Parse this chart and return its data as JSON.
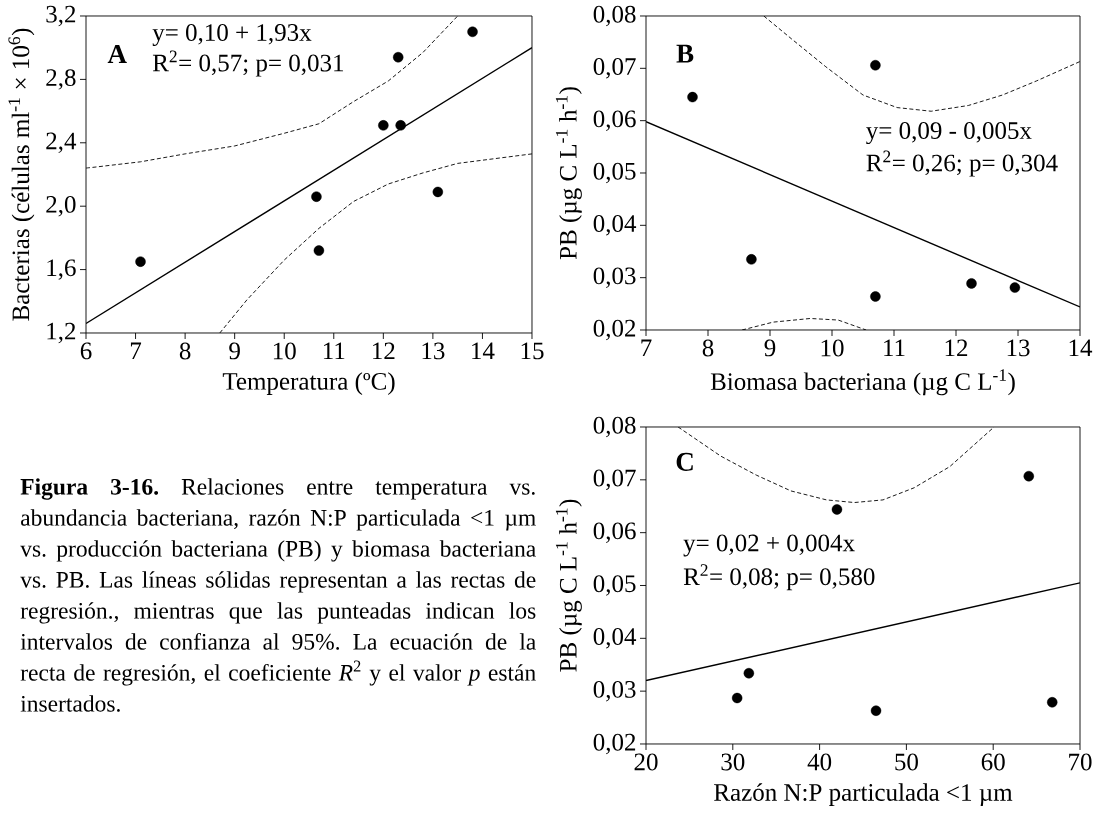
{
  "chart_data": [
    {
      "type": "scatter",
      "marker": "circle",
      "xlabel": "Temperatura (ºC)",
      "ylabel": "Bacterias (células ml$^{-1}$ × 10$^{6}$)",
      "xlim": [
        6,
        15
      ],
      "xticks": [
        6,
        7,
        8,
        9,
        10,
        11,
        12,
        13,
        14,
        15
      ],
      "ylim": [
        1.2,
        3.2
      ],
      "yticks": [
        {
          "value": 1.2,
          "label": "1,2"
        },
        {
          "value": 1.6,
          "label": "1,6"
        },
        {
          "value": 2.0,
          "label": "2,0"
        },
        {
          "value": 2.4,
          "label": "2,4"
        },
        {
          "value": 2.8,
          "label": "2,8"
        },
        {
          "value": 3.2,
          "label": "3,2"
        }
      ],
      "annotations": [
        "A",
        "y= 0,10 + 1,93x",
        "R$^{2}$= 0,57; p= 0,031"
      ],
      "series": [
        {
          "type": "scatter",
          "color": "#000000",
          "x": [
            7.1,
            10.65,
            10.7,
            12.0,
            12.35,
            12.3,
            13.1,
            13.8
          ],
          "values": [
            1.65,
            2.06,
            1.72,
            2.51,
            2.51,
            2.94,
            2.09,
            3.1
          ]
        },
        {
          "type": "line",
          "marker": "none",
          "line_style": "solid",
          "color": "#000000",
          "x": [
            6,
            15
          ],
          "values": [
            1.26,
            3.0
          ]
        },
        {
          "type": "line",
          "marker": "none",
          "line_style": "dashed",
          "color": "#000000",
          "x": [
            6,
            7.1,
            8.0,
            9.0,
            10.0,
            10.7,
            11.4,
            12.1,
            12.8,
            13.5
          ],
          "values": [
            2.24,
            2.28,
            2.33,
            2.38,
            2.46,
            2.52,
            2.66,
            2.79,
            2.97,
            3.2
          ]
        },
        {
          "type": "line",
          "marker": "none",
          "line_style": "dashed",
          "color": "#000000",
          "x": [
            8.7,
            9.25,
            10.0,
            10.7,
            11.4,
            12.1,
            12.8,
            13.5,
            15
          ],
          "values": [
            1.2,
            1.41,
            1.66,
            1.86,
            2.03,
            2.14,
            2.21,
            2.27,
            2.33
          ]
        }
      ]
    },
    {
      "type": "scatter",
      "marker": "circle",
      "xlabel": "Biomasa bacteriana (µg C L$^{-1}$)",
      "ylabel": "PB (µg C L$^{-1}$ h$^{-1}$)",
      "xlim": [
        7,
        14
      ],
      "xticks": [
        7,
        8,
        9,
        10,
        11,
        12,
        13,
        14
      ],
      "ylim": [
        0.02,
        0.08
      ],
      "yticks": [
        {
          "value": 0.02,
          "label": "0,02"
        },
        {
          "value": 0.03,
          "label": "0,03"
        },
        {
          "value": 0.04,
          "label": "0,04"
        },
        {
          "value": 0.05,
          "label": "0,05"
        },
        {
          "value": 0.06,
          "label": "0,06"
        },
        {
          "value": 0.07,
          "label": "0,07"
        },
        {
          "value": 0.08,
          "label": "0,08"
        }
      ],
      "annotations": [
        "B",
        "y= 0,09 - 0,005x",
        "R$^{2}$= 0,26; p= 0,304"
      ],
      "series": [
        {
          "type": "scatter",
          "color": "#000000",
          "x": [
            7.75,
            8.7,
            10.7,
            10.7,
            12.25,
            12.95
          ],
          "values": [
            0.0645,
            0.0335,
            0.0706,
            0.0264,
            0.0289,
            0.0281
          ]
        },
        {
          "type": "line",
          "marker": "none",
          "line_style": "solid",
          "color": "#000000",
          "x": [
            7,
            14
          ],
          "values": [
            0.0598,
            0.0244
          ]
        },
        {
          "type": "line",
          "marker": "none",
          "line_style": "dashed",
          "color": "#000000",
          "x": [
            8.9,
            9.35,
            9.9,
            10.5,
            11.05,
            11.6,
            12.2,
            12.75,
            13.3,
            14
          ],
          "values": [
            0.08,
            0.0756,
            0.0703,
            0.0649,
            0.0625,
            0.0618,
            0.0629,
            0.0649,
            0.0676,
            0.0713
          ]
        },
        {
          "type": "line",
          "marker": "none",
          "line_style": "dashed",
          "color": "#000000",
          "x": [
            8.55,
            9.05,
            9.65,
            10.1,
            10.55
          ],
          "values": [
            0.02,
            0.0215,
            0.0222,
            0.0219,
            0.02
          ]
        }
      ]
    },
    {
      "type": "other",
      "annotations": [
        "**Figura 3-16.** Relaciones entre temperatura vs. abundancia bacteriana, razón N:P particulada <1 µm vs. producción bacteriana (PB) y biomasa bacteriana vs. PB. Las líneas sólidas representan a las rectas de regresión., mientras que las punteadas indican los intervalos de confianza al 95%. La ecuación de la recta de regresión, el coeficiente *R*$^{2}$ y el valor *p* están insertados."
      ]
    },
    {
      "type": "scatter",
      "marker": "circle",
      "xlabel": "Razón N:P particulada <1 µm",
      "ylabel": "PB (µg C L$^{-1}$ h$^{-1}$)",
      "xlim": [
        20,
        70
      ],
      "xticks": [
        20,
        30,
        40,
        50,
        60,
        70
      ],
      "ylim": [
        0.02,
        0.08
      ],
      "yticks": [
        {
          "value": 0.02,
          "label": "0,02"
        },
        {
          "value": 0.03,
          "label": "0,03"
        },
        {
          "value": 0.04,
          "label": "0,04"
        },
        {
          "value": 0.05,
          "label": "0,05"
        },
        {
          "value": 0.06,
          "label": "0,06"
        },
        {
          "value": 0.07,
          "label": "0,07"
        },
        {
          "value": 0.08,
          "label": "0,08"
        }
      ],
      "annotations": [
        "C",
        "y= 0,02 + 0,004x",
        "R$^{2}$= 0,08; p= 0,580"
      ],
      "series": [
        {
          "type": "scatter",
          "color": "#000000",
          "x": [
            30.5,
            31.85,
            42.0,
            46.5,
            64.1,
            66.8
          ],
          "values": [
            0.0287,
            0.0334,
            0.0644,
            0.0263,
            0.0707,
            0.0279
          ]
        },
        {
          "type": "line",
          "marker": "none",
          "line_style": "solid",
          "color": "#000000",
          "x": [
            20,
            70
          ],
          "values": [
            0.032,
            0.0505
          ]
        },
        {
          "type": "line",
          "marker": "none",
          "line_style": "dashed",
          "color": "#000000",
          "x": [
            23.7,
            28.6,
            32.7,
            36.7,
            40.8,
            44.0,
            47.3,
            50.9,
            55.0,
            60.1
          ],
          "values": [
            0.08,
            0.0745,
            0.0709,
            0.0679,
            0.0662,
            0.0657,
            0.0662,
            0.0685,
            0.0725,
            0.08
          ]
        }
      ]
    }
  ]
}
